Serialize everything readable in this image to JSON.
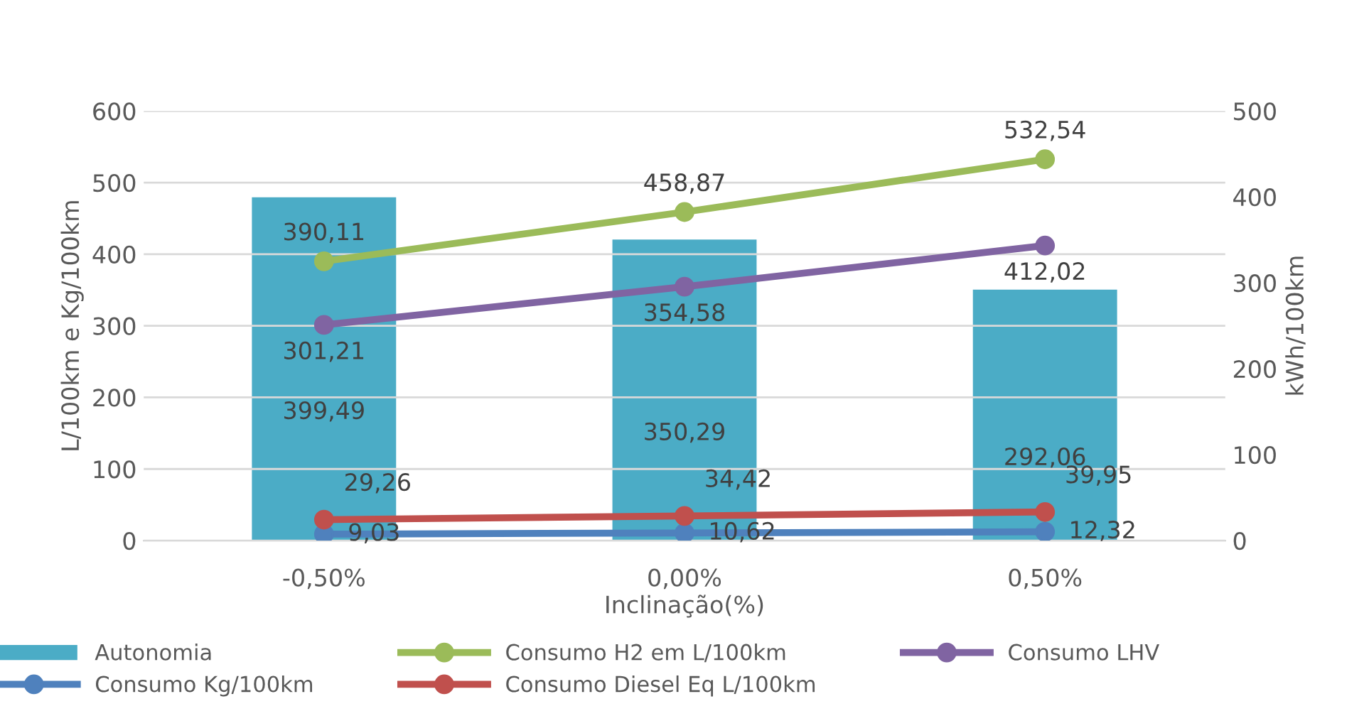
{
  "chart_data": {
    "type": "line",
    "xlabel": "Inclinação(%)",
    "ylabel": "L/100km e Kg/100km",
    "y2label": "kWh/100km",
    "categories": [
      "-0,50%",
      "0,00%",
      "0,50%"
    ],
    "ylim": [
      0,
      600
    ],
    "yticks": [
      0,
      100,
      200,
      300,
      400,
      500,
      600
    ],
    "y2lim": [
      0,
      500
    ],
    "y2ticks": [
      0,
      100,
      200,
      300,
      400,
      500
    ],
    "grid": "y",
    "legend": "bottom",
    "marker": "circle",
    "line_style": "solid",
    "series": [
      {
        "name": "Autonomia",
        "type": "bar",
        "axis": "y2",
        "color": "#4bacc6",
        "values": [
          399.49,
          350.29,
          292.06
        ],
        "value_labels": [
          "399,49",
          "350,29",
          "292,06"
        ]
      },
      {
        "name": "Consumo H2 em L/100km",
        "color": "#9bbb59",
        "values": [
          390.11,
          458.87,
          532.54
        ],
        "value_labels": [
          "390,11",
          "458,87",
          "532,54"
        ]
      },
      {
        "name": "Consumo LHV",
        "color": "#8064a2",
        "values": [
          301.21,
          354.58,
          412.02
        ],
        "value_labels": [
          "301,21",
          "354,58",
          "412,02"
        ]
      },
      {
        "name": "Consumo Kg/100km",
        "color": "#4f81bd",
        "values": [
          9.03,
          10.62,
          12.32
        ],
        "value_labels": [
          "9,03",
          "10,62",
          "12,32"
        ]
      },
      {
        "name": "Consumo Diesel Eq L/100km",
        "color": "#c0504d",
        "values": [
          29.26,
          34.42,
          39.95
        ],
        "value_labels": [
          "29,26",
          "34,42",
          "39,95"
        ]
      }
    ]
  }
}
